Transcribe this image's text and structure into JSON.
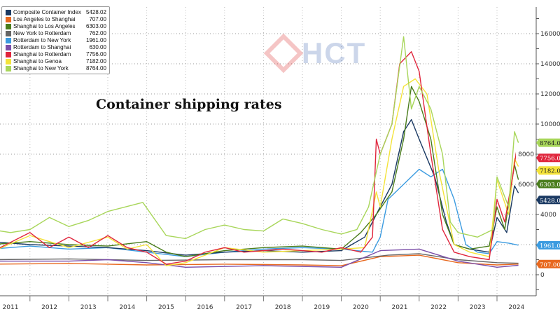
{
  "watermark": {
    "text": "HCT"
  },
  "chart_data": {
    "type": "line",
    "title": "Container shipping rates",
    "xlabel": "",
    "ylabel": "",
    "xlim": [
      2011,
      2024.8
    ],
    "ylim": [
      -2000,
      17500
    ],
    "x_tick_labels": [
      "2011",
      "2012",
      "2013",
      "2014",
      "2015",
      "2016",
      "2017",
      "2018",
      "2019",
      "2020",
      "2021",
      "2022",
      "2023",
      "2024"
    ],
    "y_ticks": [
      0,
      4000,
      6000,
      8000,
      10000,
      12000,
      14000,
      16000
    ],
    "grid": true,
    "legend_placement": "top-left",
    "series": [
      {
        "name": "Composite Container Index",
        "last": "5428.02",
        "color": "#1b3a63",
        "points": [
          [
            2011,
            2200
          ],
          [
            2012,
            2000
          ],
          [
            2013,
            1900
          ],
          [
            2014,
            1800
          ],
          [
            2015,
            1600
          ],
          [
            2016,
            1300
          ],
          [
            2017,
            1500
          ],
          [
            2018,
            1600
          ],
          [
            2019,
            1500
          ],
          [
            2020,
            1600
          ],
          [
            2020.6,
            2500
          ],
          [
            2020.9,
            4000
          ],
          [
            2021.3,
            6000
          ],
          [
            2021.6,
            9500
          ],
          [
            2021.8,
            10300
          ],
          [
            2022,
            9000
          ],
          [
            2022.4,
            6500
          ],
          [
            2022.7,
            3500
          ],
          [
            2022.9,
            2000
          ],
          [
            2023.3,
            1700
          ],
          [
            2023.8,
            1500
          ],
          [
            2024.0,
            3800
          ],
          [
            2024.25,
            2800
          ],
          [
            2024.45,
            5900
          ],
          [
            2024.55,
            5428
          ]
        ]
      },
      {
        "name": "Los Angeles to Shanghai",
        "last": "707.00",
        "color": "#e8681e",
        "points": [
          [
            2011,
            700
          ],
          [
            2013,
            750
          ],
          [
            2015,
            650
          ],
          [
            2017,
            700
          ],
          [
            2019,
            650
          ],
          [
            2020,
            600
          ],
          [
            2021,
            1200
          ],
          [
            2022,
            1300
          ],
          [
            2023,
            800
          ],
          [
            2024,
            650
          ],
          [
            2024.55,
            707
          ]
        ]
      },
      {
        "name": "Shanghai to Los Angeles",
        "last": "6303.00",
        "color": "#4a7d1c",
        "points": [
          [
            2011,
            2000
          ],
          [
            2012,
            2200
          ],
          [
            2013,
            2000
          ],
          [
            2014,
            1900
          ],
          [
            2015,
            2200
          ],
          [
            2015.5,
            1500
          ],
          [
            2016,
            1200
          ],
          [
            2017,
            1600
          ],
          [
            2018,
            1800
          ],
          [
            2019,
            1900
          ],
          [
            2020,
            1700
          ],
          [
            2020.5,
            2800
          ],
          [
            2020.9,
            4000
          ],
          [
            2021.3,
            5500
          ],
          [
            2021.6,
            9000
          ],
          [
            2021.8,
            12500
          ],
          [
            2022,
            11500
          ],
          [
            2022.3,
            9000
          ],
          [
            2022.6,
            4000
          ],
          [
            2022.9,
            2000
          ],
          [
            2023.3,
            1700
          ],
          [
            2023.8,
            1900
          ],
          [
            2024.0,
            4500
          ],
          [
            2024.2,
            3000
          ],
          [
            2024.45,
            7300
          ],
          [
            2024.55,
            6303
          ]
        ]
      },
      {
        "name": "New York to Rotterdam",
        "last": "762.00",
        "color": "#666666",
        "points": [
          [
            2011,
            1000
          ],
          [
            2013,
            1050
          ],
          [
            2015,
            950
          ],
          [
            2017,
            1000
          ],
          [
            2019,
            1000
          ],
          [
            2020,
            950
          ],
          [
            2021.2,
            1300
          ],
          [
            2022,
            1400
          ],
          [
            2023,
            1000
          ],
          [
            2024,
            800
          ],
          [
            2024.55,
            762
          ]
        ]
      },
      {
        "name": "Rotterdam to New York",
        "last": "1961.00",
        "color": "#3b9be0",
        "points": [
          [
            2011,
            1700
          ],
          [
            2012,
            1900
          ],
          [
            2013,
            1700
          ],
          [
            2014,
            1800
          ],
          [
            2015,
            1500
          ],
          [
            2016,
            1200
          ],
          [
            2017,
            1500
          ],
          [
            2018,
            1700
          ],
          [
            2019,
            1800
          ],
          [
            2020,
            1700
          ],
          [
            2020.8,
            1500
          ],
          [
            2021,
            2500
          ],
          [
            2021.2,
            5000
          ],
          [
            2021.6,
            6000
          ],
          [
            2022,
            7000
          ],
          [
            2022.3,
            6500
          ],
          [
            2022.6,
            7000
          ],
          [
            2022.9,
            5000
          ],
          [
            2023.2,
            2000
          ],
          [
            2023.5,
            1500
          ],
          [
            2023.8,
            1400
          ],
          [
            2024.0,
            2200
          ],
          [
            2024.3,
            2100
          ],
          [
            2024.55,
            1961
          ]
        ]
      },
      {
        "name": "Rotterdam to Shanghai",
        "last": "630.00",
        "color": "#7b4ea8",
        "points": [
          [
            2011,
            900
          ],
          [
            2013,
            900
          ],
          [
            2014,
            1000
          ],
          [
            2015,
            800
          ],
          [
            2016,
            500
          ],
          [
            2018,
            600
          ],
          [
            2020,
            500
          ],
          [
            2021,
            1600
          ],
          [
            2022,
            1700
          ],
          [
            2023,
            900
          ],
          [
            2024,
            500
          ],
          [
            2024.55,
            630
          ]
        ]
      },
      {
        "name": "Shanghai to Rotterdam",
        "last": "7756.00",
        "color": "#e0263d",
        "points": [
          [
            2011,
            1500
          ],
          [
            2012,
            2800
          ],
          [
            2012.5,
            1800
          ],
          [
            2013,
            2500
          ],
          [
            2013.5,
            1800
          ],
          [
            2014,
            2600
          ],
          [
            2014.5,
            1800
          ],
          [
            2015,
            1500
          ],
          [
            2015.5,
            700
          ],
          [
            2016,
            900
          ],
          [
            2016.5,
            1500
          ],
          [
            2017,
            1800
          ],
          [
            2017.5,
            1500
          ],
          [
            2018,
            1600
          ],
          [
            2018.5,
            1700
          ],
          [
            2019,
            1600
          ],
          [
            2019.5,
            1500
          ],
          [
            2020,
            1800
          ],
          [
            2020.5,
            1500
          ],
          [
            2020.8,
            2500
          ],
          [
            2020.9,
            9000
          ],
          [
            2021.0,
            8000
          ],
          [
            2021.3,
            10000
          ],
          [
            2021.5,
            14000
          ],
          [
            2021.8,
            14800
          ],
          [
            2022,
            13500
          ],
          [
            2022.3,
            8000
          ],
          [
            2022.6,
            3000
          ],
          [
            2022.9,
            1500
          ],
          [
            2023.3,
            1200
          ],
          [
            2023.8,
            1000
          ],
          [
            2024.0,
            5000
          ],
          [
            2024.2,
            3500
          ],
          [
            2024.4,
            6500
          ],
          [
            2024.5,
            8200
          ],
          [
            2024.55,
            7756
          ]
        ]
      },
      {
        "name": "Shanghai to Genoa",
        "last": "7182.00",
        "color": "#f4e33a",
        "points": [
          [
            2011,
            1500
          ],
          [
            2012,
            2600
          ],
          [
            2013,
            1800
          ],
          [
            2014,
            2500
          ],
          [
            2014.5,
            1700
          ],
          [
            2015,
            2000
          ],
          [
            2015.5,
            600
          ],
          [
            2016,
            800
          ],
          [
            2017,
            1800
          ],
          [
            2018,
            1500
          ],
          [
            2019,
            1600
          ],
          [
            2020,
            1700
          ],
          [
            2020.6,
            1800
          ],
          [
            2020.9,
            5500
          ],
          [
            2021,
            4500
          ],
          [
            2021.3,
            9000
          ],
          [
            2021.6,
            12500
          ],
          [
            2021.9,
            13000
          ],
          [
            2022.2,
            12000
          ],
          [
            2022.5,
            7000
          ],
          [
            2022.9,
            2000
          ],
          [
            2023.3,
            1500
          ],
          [
            2023.8,
            1200
          ],
          [
            2024.0,
            6300
          ],
          [
            2024.3,
            4000
          ],
          [
            2024.45,
            7700
          ],
          [
            2024.55,
            7182
          ]
        ]
      },
      {
        "name": "Shanghai to New York",
        "last": "8764.00",
        "color": "#a8d65a",
        "points": [
          [
            2011,
            3000
          ],
          [
            2011.5,
            2800
          ],
          [
            2012,
            3000
          ],
          [
            2012.5,
            3800
          ],
          [
            2013,
            3200
          ],
          [
            2013.5,
            3600
          ],
          [
            2014,
            4200
          ],
          [
            2014.9,
            4800
          ],
          [
            2015.5,
            2600
          ],
          [
            2016,
            2400
          ],
          [
            2016.5,
            3000
          ],
          [
            2017,
            3300
          ],
          [
            2017.5,
            3000
          ],
          [
            2018,
            2900
          ],
          [
            2018.5,
            3700
          ],
          [
            2019,
            3400
          ],
          [
            2019.5,
            3000
          ],
          [
            2020,
            2700
          ],
          [
            2020.4,
            3000
          ],
          [
            2020.7,
            4500
          ],
          [
            2021,
            8000
          ],
          [
            2021.3,
            10000
          ],
          [
            2021.6,
            15800
          ],
          [
            2021.8,
            11000
          ],
          [
            2022,
            12500
          ],
          [
            2022.3,
            11000
          ],
          [
            2022.6,
            8000
          ],
          [
            2022.8,
            3500
          ],
          [
            2023,
            2800
          ],
          [
            2023.5,
            2500
          ],
          [
            2023.9,
            3000
          ],
          [
            2024.0,
            6500
          ],
          [
            2024.3,
            4500
          ],
          [
            2024.45,
            9500
          ],
          [
            2024.55,
            8764
          ]
        ]
      }
    ]
  }
}
